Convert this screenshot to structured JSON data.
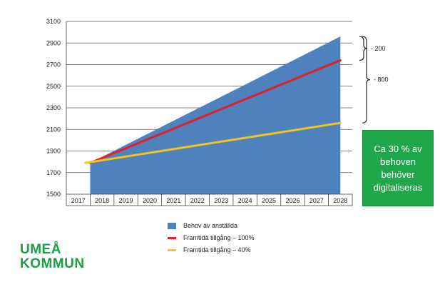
{
  "chart_data": {
    "type": "area",
    "x": [
      2017,
      2018,
      2019,
      2020,
      2021,
      2022,
      2023,
      2024,
      2025,
      2026,
      2027,
      2028
    ],
    "ylim": [
      1500,
      3100
    ],
    "yticks": [
      1500,
      1700,
      1900,
      2100,
      2300,
      2500,
      2700,
      2900,
      3100
    ],
    "series": [
      {
        "name": "Behov av anställda",
        "kind": "area",
        "color": "#4f81bd",
        "x": [
          2018,
          2028.5
        ],
        "values": [
          1790,
          2960
        ]
      },
      {
        "name": "Framtida tillgång – 100%",
        "kind": "line",
        "color": "#e0222a",
        "x": [
          2018,
          2028.5
        ],
        "values": [
          1790,
          2740
        ]
      },
      {
        "name": "Framtida tillgång – 40%",
        "kind": "line",
        "color": "#f5c31b",
        "x": [
          2017.8,
          2028.5
        ],
        "values": [
          1790,
          2160
        ]
      }
    ],
    "annotations": [
      {
        "label": "- 200",
        "from": 2740,
        "to": 2960
      },
      {
        "label": "- 800",
        "from": 2160,
        "to": 2960
      }
    ],
    "grid": "horizontal",
    "legend": "bottom"
  },
  "callout_text": "Ca 30 % av behoven behöver digitaliseras",
  "logo": {
    "line1": "UMEÅ",
    "line2": "KOMMUN"
  }
}
